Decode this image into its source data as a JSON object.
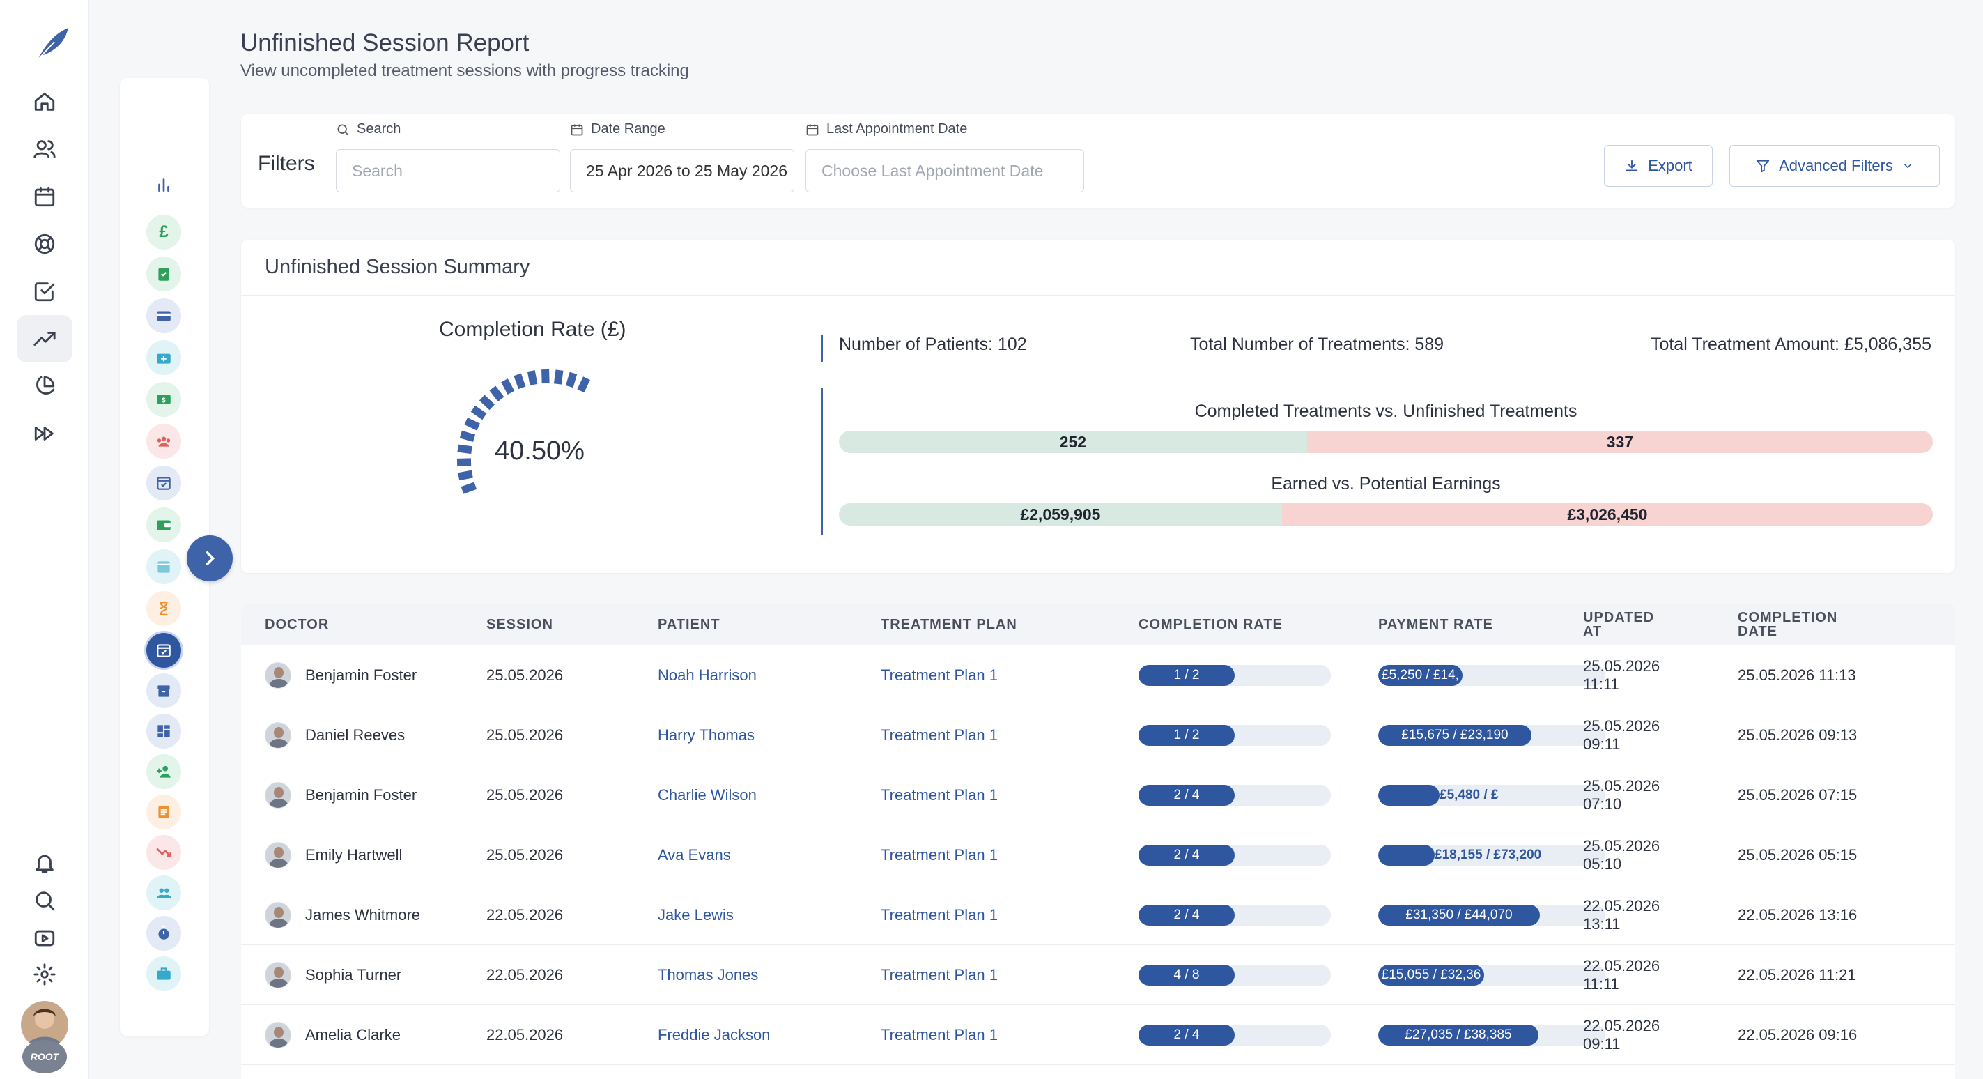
{
  "page": {
    "title": "Unfinished Session Report",
    "subtitle": "View uncompleted treatment sessions with progress tracking"
  },
  "filters": {
    "label": "Filters",
    "search": {
      "label": "Search",
      "placeholder": "Search",
      "value": ""
    },
    "date_range": {
      "label": "Date Range",
      "value": "25 Apr 2026 to 25 May 2026"
    },
    "last_appointment": {
      "label": "Last Appointment Date",
      "placeholder": "Choose Last Appointment Date"
    },
    "export_label": "Export",
    "advanced_label": "Advanced Filters"
  },
  "summary": {
    "title": "Unfinished Session Summary",
    "gauge_title": "Completion Rate (£)",
    "gauge_value": "40.50%",
    "gauge_fraction": 0.405,
    "patients": "Number of Patients: 102",
    "treatments": "Total Number of Treatments: 589",
    "amount": "Total Treatment Amount: £5,086,355",
    "bar1": {
      "title": "Completed Treatments vs. Unfinished Treatments",
      "left": "252",
      "right": "337",
      "left_value": 252,
      "right_value": 337
    },
    "bar2": {
      "title": "Earned vs. Potential Earnings",
      "left": "£2,059,905",
      "right": "£3,026,450",
      "left_value": 2059905,
      "right_value": 3026450
    }
  },
  "table": {
    "headers": {
      "doctor": "DOCTOR",
      "session": "SESSION",
      "patient": "PATIENT",
      "plan": "TREATMENT PLAN",
      "completion": "COMPLETION RATE",
      "payment": "PAYMENT RATE",
      "updated": "UPDATED AT",
      "completed": "COMPLETION DATE"
    },
    "rows": [
      {
        "doctor": "Benjamin Foster",
        "session": "25.05.2026",
        "patient": "Noah Harrison",
        "plan": "Treatment Plan 1",
        "completion": "1 / 2",
        "completion_ratio": 0.5,
        "payment": "£5,250 / £14,",
        "payment_ratio": 0.37,
        "updated": "25.05.2026 11:11",
        "completed": "25.05.2026 11:13"
      },
      {
        "doctor": "Daniel Reeves",
        "session": "25.05.2026",
        "patient": "Harry Thomas",
        "plan": "Treatment Plan 1",
        "completion": "1 / 2",
        "completion_ratio": 0.5,
        "payment": "£15,675 / £23,190",
        "payment_ratio": 0.676,
        "updated": "25.05.2026 09:11",
        "completed": "25.05.2026 09:13"
      },
      {
        "doctor": "Benjamin Foster",
        "session": "25.05.2026",
        "patient": "Charlie Wilson",
        "plan": "Treatment Plan 1",
        "completion": "2 / 4",
        "completion_ratio": 0.5,
        "payment": "£5,480 / £",
        "payment_ratio": 0.27,
        "updated": "25.05.2026 07:10",
        "completed": "25.05.2026 07:15"
      },
      {
        "doctor": "Emily Hartwell",
        "session": "25.05.2026",
        "patient": "Ava Evans",
        "plan": "Treatment Plan 1",
        "completion": "2 / 4",
        "completion_ratio": 0.5,
        "payment": "£18,155 / £73,200",
        "payment_ratio": 0.248,
        "updated": "25.05.2026 05:10",
        "completed": "25.05.2026 05:15"
      },
      {
        "doctor": "James Whitmore",
        "session": "22.05.2026",
        "patient": "Jake Lewis",
        "plan": "Treatment Plan 1",
        "completion": "2 / 4",
        "completion_ratio": 0.5,
        "payment": "£31,350 / £44,070",
        "payment_ratio": 0.711,
        "updated": "22.05.2026 13:11",
        "completed": "22.05.2026 13:16"
      },
      {
        "doctor": "Sophia Turner",
        "session": "22.05.2026",
        "patient": "Thomas Jones",
        "plan": "Treatment Plan 1",
        "completion": "4 / 8",
        "completion_ratio": 0.5,
        "payment": "£15,055 / £32,36",
        "payment_ratio": 0.465,
        "updated": "22.05.2026 11:11",
        "completed": "22.05.2026 11:21"
      },
      {
        "doctor": "Amelia Clarke",
        "session": "22.05.2026",
        "patient": "Freddie Jackson",
        "plan": "Treatment Plan 1",
        "completion": "2 / 4",
        "completion_ratio": 0.5,
        "payment": "£27,035 / £38,385",
        "payment_ratio": 0.704,
        "updated": "22.05.2026 09:11",
        "completed": "22.05.2026 09:16"
      }
    ]
  },
  "avatar_badge": "ROOT",
  "colors": {
    "accent": "#2f57a0",
    "completed": "#d8e9e1",
    "unfinished": "#f7d3d1"
  },
  "icons": {
    "rail": [
      "home-icon",
      "users-icon",
      "calendar-icon",
      "support-icon",
      "tasks-icon",
      "trending-up-icon",
      "pie-chart-icon",
      "fast-forward-icon",
      "bell-icon",
      "search-icon",
      "video-icon",
      "settings-icon"
    ],
    "subbar": [
      "bar-chart-icon",
      "pound-icon",
      "clipboard-check-icon",
      "credit-card-icon",
      "medical-kit-icon",
      "cash-icon",
      "team-icon",
      "calendar-check-icon",
      "wallet-icon",
      "calendar-icon",
      "hourglass-icon",
      "calendar-check-icon",
      "archive-icon",
      "dashboard-icon",
      "user-add-icon",
      "document-icon",
      "trending-down-icon",
      "group-icon",
      "timer-icon",
      "briefcase-icon"
    ]
  }
}
